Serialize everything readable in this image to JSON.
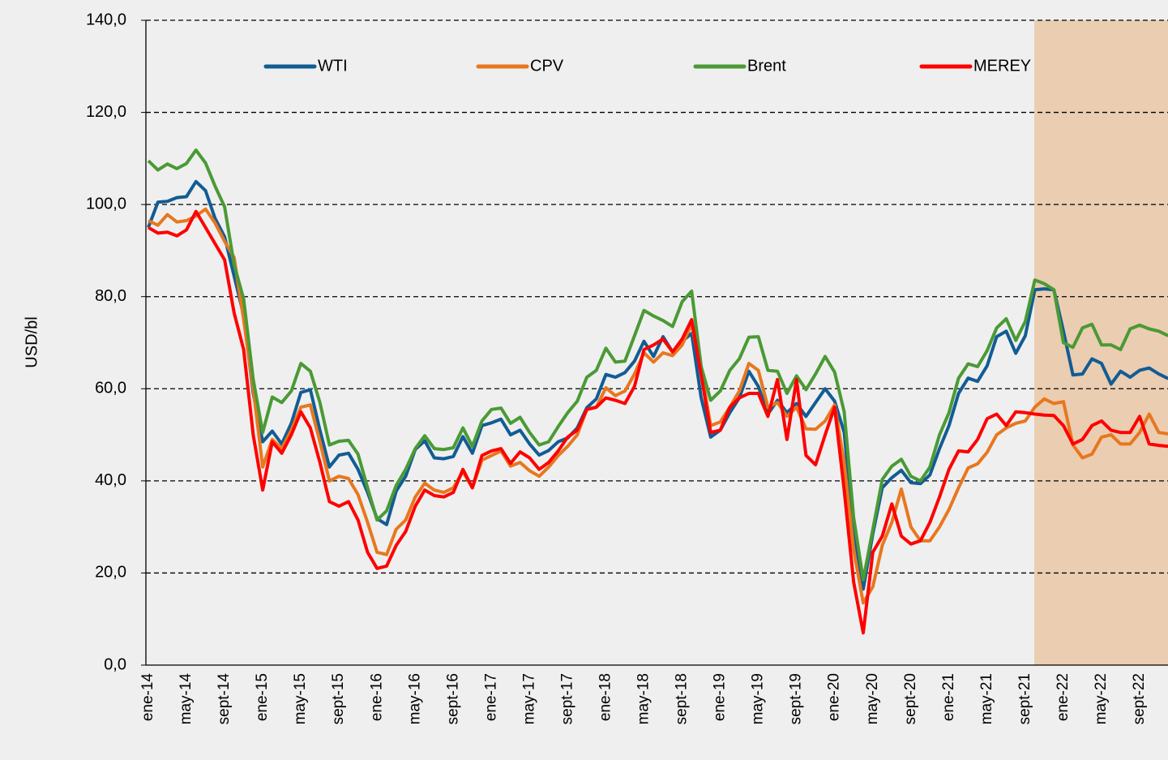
{
  "chart_data": {
    "type": "line",
    "ylabel": "USD/bl",
    "categories": [
      "ene-14",
      null,
      null,
      null,
      "may-14",
      null,
      null,
      null,
      "sept-14",
      null,
      null,
      null,
      "ene-15",
      null,
      null,
      null,
      "may-15",
      null,
      null,
      null,
      "sept-15",
      null,
      null,
      null,
      "ene-16",
      null,
      null,
      null,
      "may-16",
      null,
      null,
      null,
      "sept-16",
      null,
      null,
      null,
      "ene-17",
      null,
      null,
      null,
      "may-17",
      null,
      null,
      null,
      "sept-17",
      null,
      null,
      null,
      "ene-18",
      null,
      null,
      null,
      "may-18",
      null,
      null,
      null,
      "sept-18",
      null,
      null,
      null,
      "ene-19",
      null,
      null,
      null,
      "may-19",
      null,
      null,
      null,
      "sept-19",
      null,
      null,
      null,
      "ene-20",
      null,
      null,
      null,
      "may-20",
      null,
      null,
      null,
      "sept-20",
      null,
      null,
      null,
      "ene-21",
      null,
      null,
      null,
      "may-21",
      null,
      null,
      null,
      "sept-21",
      null,
      null,
      null,
      "ene-22",
      null,
      null,
      null,
      "may-22",
      null,
      null,
      null,
      "sept-22",
      null,
      null,
      null
    ],
    "series": [
      {
        "name": "WTI",
        "color": "#125c94",
        "values": [
          95,
          100.5,
          100.7,
          101.5,
          101.7,
          105,
          103,
          97,
          93,
          84.5,
          76,
          59,
          48.5,
          50.8,
          48,
          52.5,
          59.2,
          59.8,
          51,
          43,
          45.6,
          46,
          42.5,
          37.5,
          31.8,
          30.5,
          37.8,
          41,
          46.8,
          48.7,
          45,
          44.8,
          45.3,
          49.6,
          46,
          52,
          52.6,
          53.4,
          50,
          51,
          48,
          45.6,
          46.6,
          48.5,
          49.3,
          51.5,
          55.9,
          57.8,
          63.1,
          62.5,
          63.5,
          66,
          70.3,
          67,
          71.3,
          68,
          70.3,
          72,
          58,
          49.5,
          51,
          54.8,
          58,
          63.8,
          60.5,
          54.5,
          57.5,
          54.8,
          56.8,
          54,
          57,
          60,
          57.3,
          50.5,
          29.5,
          16.5,
          28.5,
          38.5,
          40.7,
          42.3,
          39.6,
          39.4,
          41.3,
          47,
          52,
          59,
          62.3,
          61.6,
          65,
          71.3,
          72.5,
          67.7,
          71.5,
          81.5,
          81.7,
          81.5,
          72.5,
          63,
          63.2,
          66.5,
          65.5,
          61,
          63.8,
          62.5,
          64,
          64.5,
          63.2,
          62.2
        ]
      },
      {
        "name": "CPV",
        "color": "#e8771e",
        "values": [
          96.5,
          95.5,
          97.8,
          96.2,
          96.5,
          97.5,
          99,
          96,
          92,
          88.5,
          75,
          60,
          43,
          49,
          47,
          51,
          56,
          56.5,
          48.5,
          40,
          41,
          40.5,
          37,
          31,
          24.5,
          24,
          29.5,
          31.5,
          36.5,
          39.5,
          38,
          37.5,
          38.5,
          42,
          38.5,
          44.5,
          45.5,
          46.5,
          43.2,
          44,
          42.2,
          41,
          43,
          45.5,
          47.5,
          50,
          55.5,
          56,
          60.2,
          58.5,
          59.5,
          63.2,
          67.8,
          65.8,
          67.8,
          67.2,
          69.5,
          74,
          64,
          52,
          52.8,
          56,
          59.5,
          65.5,
          64,
          56,
          57,
          54,
          56,
          51.3,
          51.2,
          53,
          56.5,
          44,
          25,
          13.5,
          17,
          26,
          31,
          38.2,
          30,
          27,
          27,
          30,
          33.8,
          38.5,
          42.8,
          43.7,
          46.2,
          50,
          51.5,
          52.5,
          53,
          56,
          57.8,
          56.8,
          57.2,
          47.8,
          45,
          45.8,
          49.5,
          50,
          48,
          48,
          50.5,
          54.5,
          50.5,
          50.2
        ]
      },
      {
        "name": "Brent",
        "color": "#4a9a35",
        "values": [
          109.5,
          107.5,
          108.8,
          107.8,
          108.9,
          111.8,
          109,
          104,
          99.5,
          87,
          79.5,
          62,
          50.5,
          58.2,
          57,
          59.5,
          65.5,
          63.8,
          57,
          47.8,
          48.6,
          48.8,
          45.8,
          38.5,
          31.5,
          33.5,
          39,
          42.5,
          47,
          49.8,
          47,
          46.8,
          47.2,
          51.5,
          47.5,
          53,
          55.5,
          55.8,
          52.5,
          53.8,
          50.5,
          47.8,
          48.5,
          51.8,
          54.8,
          57.3,
          62.5,
          64,
          68.8,
          65.8,
          66,
          71.5,
          77,
          75.8,
          74.8,
          73.5,
          78.9,
          81.2,
          64.8,
          57.5,
          59.5,
          64,
          66.5,
          71.2,
          71.3,
          64,
          63.8,
          59,
          62.8,
          59.8,
          63.2,
          67,
          63.6,
          55,
          32,
          18.5,
          29.4,
          40.3,
          43.2,
          44.7,
          41,
          40,
          43,
          50,
          54.8,
          62.3,
          65.4,
          64.8,
          68.3,
          73.2,
          75.2,
          70.5,
          74.6,
          83.6,
          82.8,
          81.5,
          70,
          69,
          73.2,
          74,
          69.5,
          69.5,
          68.5,
          73,
          73.8,
          73,
          72.5,
          71.5
        ]
      },
      {
        "name": "MEREY",
        "color": "#ff0000",
        "values": [
          95,
          93.8,
          94,
          93.2,
          94.5,
          98.5,
          95,
          91.5,
          88,
          76.5,
          68.5,
          50,
          38,
          48.5,
          46,
          50,
          55,
          51.5,
          44,
          35.5,
          34.5,
          35.5,
          31.5,
          24.5,
          21,
          21.5,
          26,
          29,
          34.5,
          38,
          36.8,
          36.5,
          37.5,
          42.5,
          38.5,
          45.5,
          46.5,
          47,
          43.8,
          46.3,
          45,
          42.5,
          44,
          46.5,
          49.5,
          51,
          55.5,
          56,
          58,
          57.5,
          56.8,
          60.5,
          68.5,
          69.5,
          70.8,
          68,
          70.8,
          75,
          63,
          50.5,
          51,
          56,
          58,
          59,
          59,
          54,
          62,
          49,
          62,
          45.5,
          43.5,
          50,
          56,
          38,
          18,
          7,
          24.5,
          28,
          35,
          28,
          26.3,
          27,
          31,
          36.5,
          42.5,
          46.5,
          46.3,
          49,
          53.5,
          54.5,
          52,
          55,
          54.8,
          54.5,
          54.3,
          54.2,
          52,
          48,
          49,
          52,
          53,
          51,
          50.5,
          50.5,
          54,
          48,
          47.7,
          47.5
        ]
      }
    ],
    "ylim": [
      0,
      140
    ],
    "yticks": [
      {
        "value": 0,
        "label": "0,0"
      },
      {
        "value": 20,
        "label": "20,0"
      },
      {
        "value": 40,
        "label": "40,0"
      },
      {
        "value": 60,
        "label": "60,0"
      },
      {
        "value": 80,
        "label": "80,0"
      },
      {
        "value": 100,
        "label": "100,0"
      },
      {
        "value": 120,
        "label": "120,0"
      },
      {
        "value": 140,
        "label": "140,0"
      }
    ],
    "grid": true,
    "legend": "top"
  }
}
